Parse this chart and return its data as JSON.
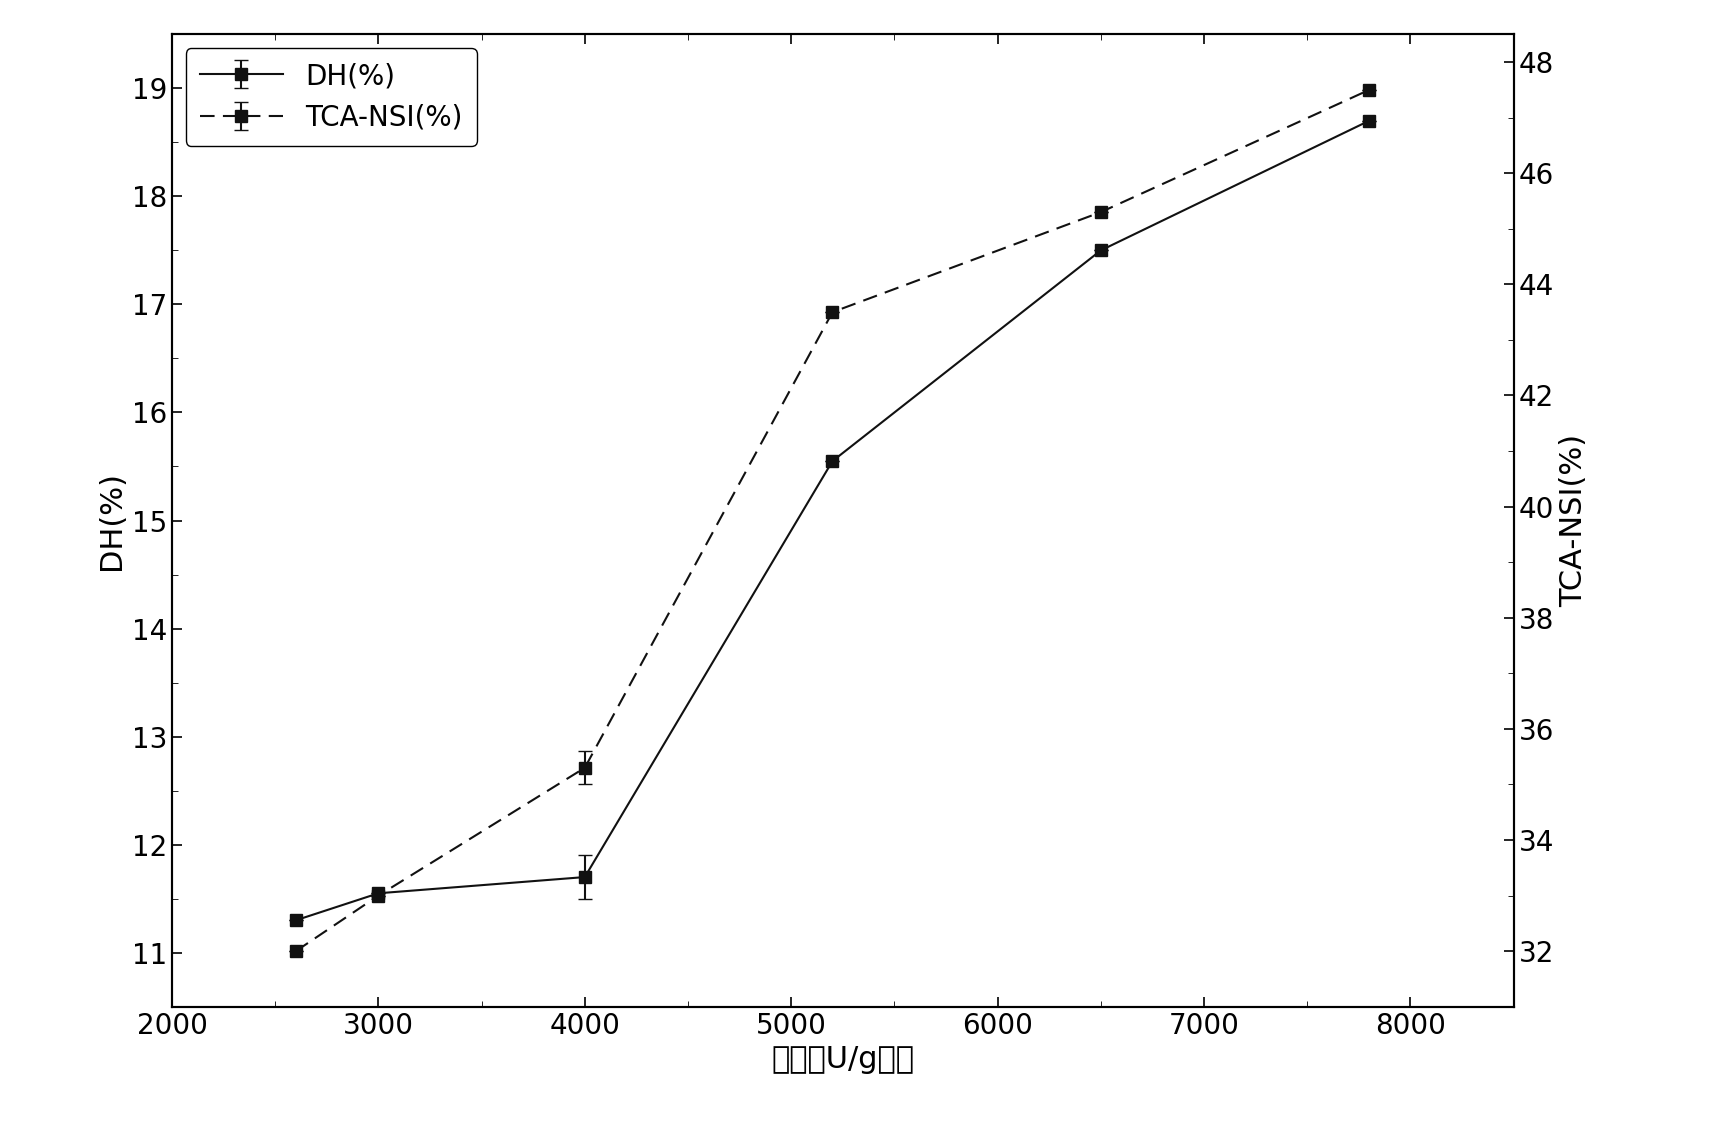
{
  "x": [
    2600,
    3000,
    4000,
    5200,
    6500,
    7800
  ],
  "dh": [
    11.3,
    11.55,
    11.7,
    15.55,
    17.5,
    18.7
  ],
  "tca_nsi": [
    32.0,
    33.0,
    35.3,
    43.5,
    45.3,
    47.5
  ],
  "dh_yerr_lo": [
    0.0,
    0.0,
    0.2,
    0.0,
    0.0,
    0.0
  ],
  "dh_yerr_hi": [
    0.0,
    0.0,
    0.2,
    0.0,
    0.0,
    0.0
  ],
  "tca_nsi_yerr_lo": [
    0.0,
    0.0,
    0.3,
    0.0,
    0.0,
    0.0
  ],
  "tca_nsi_yerr_hi": [
    0.0,
    0.0,
    0.3,
    0.0,
    0.0,
    0.0
  ],
  "dh_ylim": [
    10.5,
    19.5
  ],
  "dh_yticks": [
    11,
    12,
    13,
    14,
    15,
    16,
    17,
    18,
    19
  ],
  "tca_nsi_ylim": [
    31.0,
    48.5
  ],
  "tca_nsi_yticks": [
    32,
    34,
    36,
    38,
    40,
    42,
    44,
    46,
    48
  ],
  "xlim": [
    2000,
    8500
  ],
  "xticks": [
    2000,
    3000,
    4000,
    5000,
    6000,
    7000,
    8000
  ],
  "xlabel": "加酶量U/g底物",
  "ylabel_left": "DH(%)",
  "ylabel_right": "TCA-NSI(%)",
  "legend_dh": "DH(%)",
  "legend_tca": "TCA-NSI(%)",
  "line_color": "#111111",
  "background_color": "#ffffff",
  "fontsize_label": 22,
  "fontsize_tick": 20,
  "fontsize_legend": 20
}
